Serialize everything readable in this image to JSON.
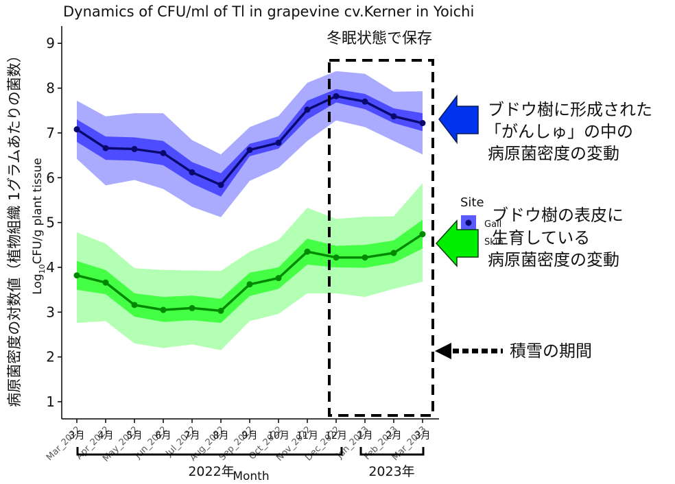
{
  "chart_data": {
    "type": "line",
    "title": "Dynamics of CFU/ml of Tl in grapevine cv.Kerner in Yoichi",
    "xlabel": "Month",
    "ylabel": "Log10CFU/g plant tissue",
    "ylabel_jp": "病原菌密度の対数値（植物組織 1グラムあたりの菌数）",
    "ylim": [
      0.6,
      9.4
    ],
    "yticks": [
      "1",
      "2",
      "3",
      "4",
      "5",
      "6",
      "7",
      "8",
      "9"
    ],
    "categories": [
      "Mar_2022",
      "Apr_2022",
      "May_2022",
      "Jun_2022",
      "Jul_2022",
      "Aug_2022",
      "Sep_2022",
      "Oct_2022",
      "Nov_2022",
      "Dec_2022",
      "Jan_2023",
      "Feb_2023",
      "Mar_2023"
    ],
    "month_labels_jp": [
      "3月",
      "4月",
      "5月",
      "6月",
      "7月",
      "8月",
      "9月",
      "10月",
      "11月",
      "12月",
      "1月",
      "2月",
      "3月"
    ],
    "legend": {
      "title": "Site",
      "position": "right"
    },
    "series": [
      {
        "name": "Gall",
        "color": "#0a0a6e",
        "values": [
          7.08,
          6.66,
          6.64,
          6.55,
          6.12,
          5.84,
          6.62,
          6.78,
          7.52,
          7.82,
          7.7,
          7.37,
          7.22
        ],
        "inner_band": {
          "color": "#4d4dff",
          "low": [
            6.8,
            6.4,
            6.38,
            6.28,
            5.87,
            5.58,
            6.48,
            6.65,
            7.3,
            7.68,
            7.53,
            7.22,
            7.04
          ],
          "high": [
            7.3,
            6.92,
            6.9,
            6.82,
            6.35,
            6.1,
            6.76,
            6.92,
            7.72,
            7.98,
            7.87,
            7.55,
            7.44
          ]
        },
        "outer_band": {
          "color": "#aaaaff",
          "low": [
            6.42,
            5.83,
            5.95,
            5.75,
            5.35,
            5.12,
            5.93,
            6.22,
            6.82,
            7.28,
            7.13,
            6.82,
            6.52
          ],
          "high": [
            7.72,
            7.37,
            7.44,
            7.44,
            6.84,
            6.52,
            7.13,
            7.38,
            8.12,
            8.38,
            8.32,
            7.92,
            7.93
          ]
        }
      },
      {
        "name": "Skin",
        "color": "#008800",
        "values": [
          3.82,
          3.66,
          3.16,
          3.05,
          3.09,
          3.03,
          3.62,
          3.76,
          4.35,
          4.22,
          4.22,
          4.32,
          4.74
        ],
        "inner_band": {
          "color": "#44ff44",
          "low": [
            3.5,
            3.4,
            2.9,
            2.78,
            2.82,
            2.76,
            3.36,
            3.52,
            4.06,
            4.0,
            3.99,
            4.1,
            4.42
          ],
          "high": [
            4.14,
            3.94,
            3.42,
            3.34,
            3.37,
            3.3,
            3.88,
            4.0,
            4.64,
            4.48,
            4.5,
            4.6,
            5.06
          ]
        },
        "outer_band": {
          "color": "#b3ffb3",
          "low": [
            2.76,
            2.8,
            2.3,
            2.2,
            2.28,
            2.15,
            2.8,
            2.96,
            3.42,
            3.42,
            3.34,
            3.52,
            3.68
          ],
          "high": [
            4.78,
            4.53,
            3.98,
            3.94,
            3.93,
            3.92,
            4.35,
            4.61,
            5.33,
            5.08,
            5.13,
            5.14,
            5.88
          ]
        }
      }
    ]
  },
  "annotations": {
    "dormancy_label": "冬眠状態で保存",
    "gall_note": [
      "ブドウ樹に形成された",
      "「がんしゅ」の中の",
      "病原菌密度の変動"
    ],
    "skin_note": [
      "ブドウ樹の表皮に",
      "生育している",
      "病原菌密度の変動"
    ],
    "snow_note": "積雪の期間",
    "year_2022": "2022年",
    "year_2023": "2023年"
  },
  "colors": {
    "gall_arrow": "#0033ee",
    "skin_arrow": "#00ee00"
  }
}
